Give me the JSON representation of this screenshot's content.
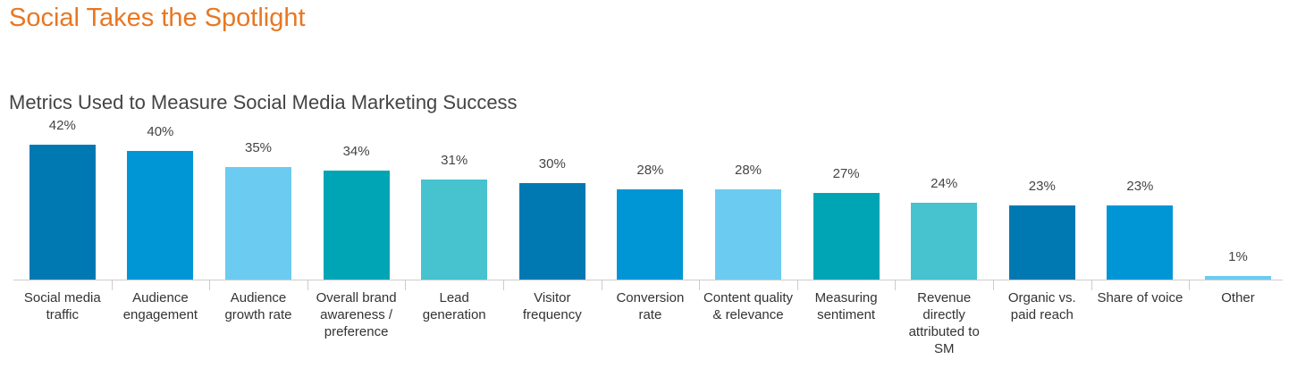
{
  "chart_data": {
    "type": "bar",
    "title": "Social Takes the Spotlight",
    "subtitle": "Metrics Used to Measure Social Media Marketing Success",
    "categories": [
      "Social media traffic",
      "Audience engagement",
      "Audience growth rate",
      "Overall brand awareness / preference",
      "Lead generation",
      "Visitor frequency",
      "Conversion rate",
      "Content quality & relevance",
      "Measuring sentiment",
      "Revenue directly attributed to SM",
      "Organic vs. paid reach",
      "Share of voice",
      "Other"
    ],
    "values": [
      42,
      40,
      35,
      34,
      31,
      30,
      28,
      28,
      27,
      24,
      23,
      23,
      1
    ],
    "value_labels": [
      "42%",
      "40%",
      "35%",
      "34%",
      "31%",
      "30%",
      "28%",
      "28%",
      "27%",
      "24%",
      "23%",
      "23%",
      "1%"
    ],
    "colors": [
      "#0079b3",
      "#0096d6",
      "#6ccbf1",
      "#00a5b5",
      "#47c2cf",
      "#0079b3",
      "#0096d6",
      "#6ccbf1",
      "#00a5b5",
      "#47c2cf",
      "#0079b3",
      "#0096d6",
      "#6ccbf1"
    ]
  }
}
